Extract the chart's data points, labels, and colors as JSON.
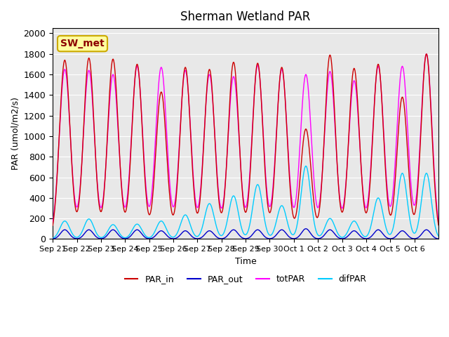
{
  "title": "Sherman Wetland PAR",
  "ylabel": "PAR (umol/m2/s)",
  "xlabel": "Time",
  "annotation": "SW_met",
  "ylim": [
    0,
    2050
  ],
  "yticks": [
    0,
    200,
    400,
    600,
    800,
    1000,
    1200,
    1400,
    1600,
    1800,
    2000
  ],
  "xtick_labels": [
    "Sep 21",
    "Sep 22",
    "Sep 23",
    "Sep 24",
    "Sep 25",
    "Sep 26",
    "Sep 27",
    "Sep 28",
    "Sep 29",
    "Sep 30",
    "Oct 1",
    "Oct 2",
    "Oct 3",
    "Oct 4",
    "Oct 5",
    "Oct 6"
  ],
  "colors": {
    "PAR_in": "#cc0000",
    "PAR_out": "#0000cc",
    "totPAR": "#ff00ff",
    "difPAR": "#00ccff"
  },
  "background_color": "#e8e8e8",
  "figsize": [
    6.4,
    4.8
  ],
  "dpi": 100,
  "day_peaks_PAR_in": [
    1740,
    1760,
    1750,
    1700,
    1430,
    1670,
    1650,
    1720,
    1710,
    1670,
    1070,
    1790,
    1660,
    1700,
    1380,
    1800
  ],
  "day_peaks_totPAR": [
    1650,
    1640,
    1600,
    1680,
    1670,
    1640,
    1600,
    1580,
    1690,
    1650,
    1600,
    1630,
    1540,
    1680,
    1680,
    1800
  ],
  "day_peaks_PAR_out": [
    90,
    90,
    90,
    90,
    80,
    80,
    80,
    90,
    90,
    90,
    100,
    90,
    80,
    90,
    80,
    90
  ],
  "day_peaks_difPAR": [
    175,
    195,
    140,
    145,
    175,
    235,
    345,
    420,
    530,
    325,
    710,
    200,
    175,
    400,
    640,
    640
  ]
}
